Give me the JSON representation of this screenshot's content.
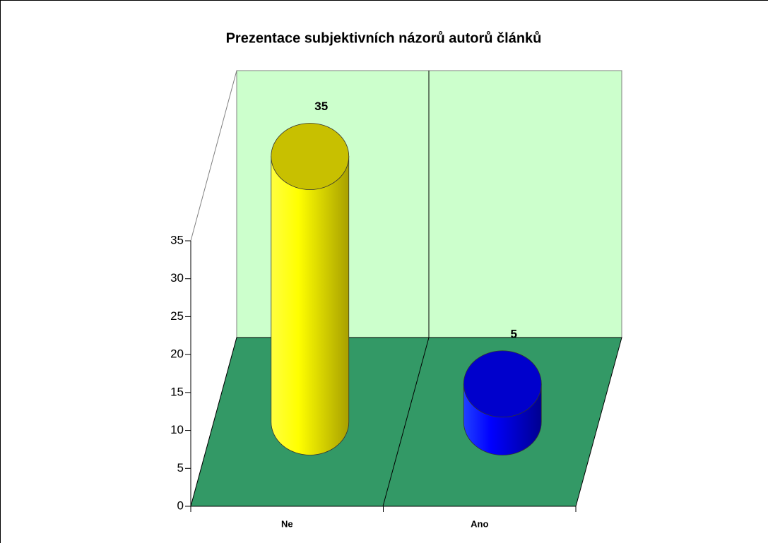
{
  "chart_data": {
    "type": "bar3d",
    "title": "Prezentace subjektivních názorů autorů článků",
    "categories": [
      "Ne",
      "Ano"
    ],
    "values": [
      35,
      5
    ],
    "colors": [
      "#ffff00",
      "#0000ff"
    ],
    "ylim": [
      0,
      35
    ],
    "yticks": [
      0,
      5,
      10,
      15,
      20,
      25,
      30,
      35
    ],
    "grid": false
  }
}
